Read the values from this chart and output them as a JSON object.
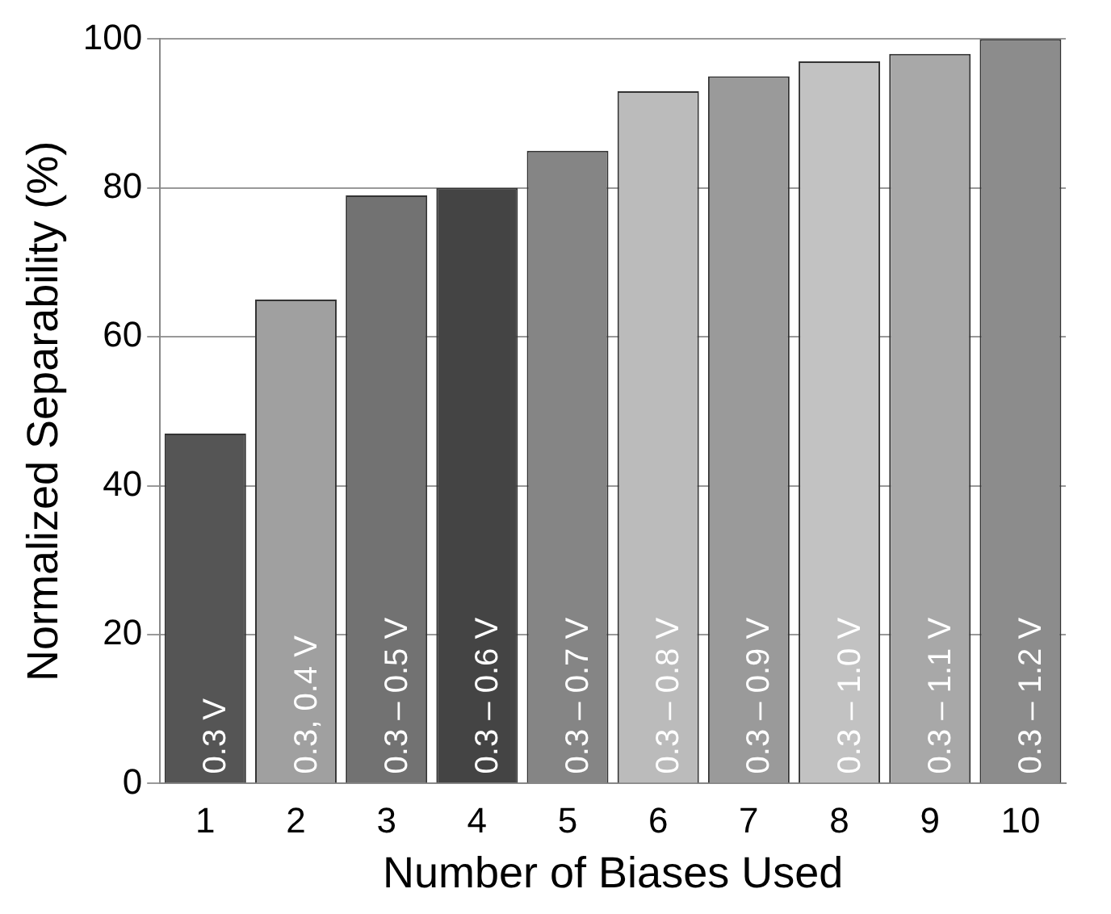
{
  "chart_data": {
    "type": "bar",
    "xlabel": "Number of Biases Used",
    "ylabel": "Normalized Separability (%)",
    "categories": [
      "1",
      "2",
      "3",
      "4",
      "5",
      "6",
      "7",
      "8",
      "9",
      "10"
    ],
    "values": [
      47,
      65,
      79,
      80,
      85,
      93,
      95,
      97,
      98,
      100
    ],
    "colors": [
      "#555555",
      "#a0a0a0",
      "#727272",
      "#444444",
      "#858585",
      "#bbbbbb",
      "#9a9a9a",
      "#c2c2c2",
      "#a8a8a8",
      "#8c8c8c"
    ],
    "ylim": [
      0,
      100
    ],
    "yticks": [
      0,
      20,
      40,
      60,
      80,
      100
    ],
    "grid": "y",
    "legend": false,
    "annotations": [
      {
        "text": "0.3 V",
        "x": "1",
        "y": 0
      },
      {
        "text": "0.3, 0.4 V",
        "x": "2",
        "y": 0
      },
      {
        "text": "0.3 – 0.5 V",
        "x": "3",
        "y": 0
      },
      {
        "text": "0.3 – 0.6 V",
        "x": "4",
        "y": 0
      },
      {
        "text": "0.3 – 0.7 V",
        "x": "5",
        "y": 0
      },
      {
        "text": "0.3 – 0.8 V",
        "x": "6",
        "y": 0
      },
      {
        "text": "0.3 – 0.9 V",
        "x": "7",
        "y": 0
      },
      {
        "text": "0.3 – 1.0 V",
        "x": "8",
        "y": 0
      },
      {
        "text": "0.3 – 1.1 V",
        "x": "9",
        "y": 0
      },
      {
        "text": "0.3 – 1.2 V",
        "x": "10",
        "y": 0
      }
    ]
  }
}
